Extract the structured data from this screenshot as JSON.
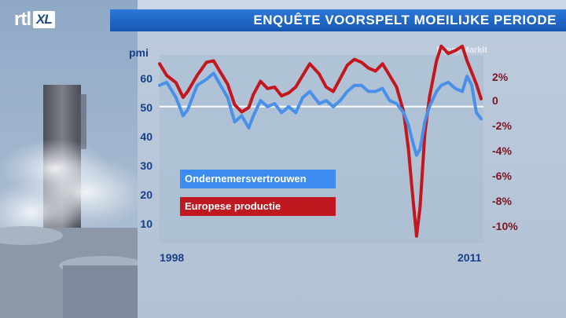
{
  "logo": {
    "rtl": "rtl",
    "xl": "XL"
  },
  "title": "ENQUÊTE VOORSPELT MOEILIJKE PERIODE",
  "source": "Bron: Markit",
  "chart_data": {
    "type": "line",
    "y_axis_label": "pmi",
    "y_left_ticks": [
      "60",
      "50",
      "40",
      "30",
      "20",
      "10"
    ],
    "y_left_range": [
      5,
      67
    ],
    "y_right_ticks": [
      "2%",
      "0",
      "-2%",
      "-4%",
      "-6%",
      "-8%",
      "-10%"
    ],
    "y_right_range": [
      -10.5,
      2.4
    ],
    "reference_line_pmi": 50,
    "x_labels": [
      "1998",
      "2011"
    ],
    "x_range": [
      1998,
      2011.8
    ],
    "grid": false,
    "series": [
      {
        "name": "Ondernemersvertrouwen",
        "axis": "left",
        "color": "#4a90e8",
        "x": [
          1998.0,
          1998.3,
          1998.7,
          1999.0,
          1999.2,
          1999.6,
          2000.0,
          2000.3,
          2000.6,
          2000.9,
          2001.2,
          2001.5,
          2001.8,
          2002.0,
          2002.3,
          2002.6,
          2002.9,
          2003.2,
          2003.5,
          2003.8,
          2004.1,
          2004.4,
          2004.8,
          2005.1,
          2005.4,
          2005.7,
          2006.0,
          2006.3,
          2006.6,
          2006.9,
          2007.2,
          2007.5,
          2007.8,
          2008.1,
          2008.4,
          2008.6,
          2008.8,
          2008.95,
          2009.1,
          2009.3,
          2009.5,
          2009.8,
          2010.0,
          2010.3,
          2010.6,
          2010.9,
          2011.1,
          2011.3,
          2011.5,
          2011.7
        ],
        "y": [
          57,
          58,
          53,
          47,
          49,
          57,
          59,
          61,
          57,
          53,
          45,
          47,
          43,
          47,
          52,
          50,
          51,
          48,
          50,
          48,
          53,
          55,
          51,
          52,
          50,
          52,
          55,
          57,
          57,
          55,
          55,
          56,
          52,
          51,
          48,
          44,
          38,
          34,
          36,
          45,
          50,
          55,
          57,
          58,
          56,
          55,
          60,
          57,
          48,
          46
        ]
      },
      {
        "name": "Europese productie",
        "axis": "right",
        "color": "#c3161d",
        "x": [
          1998.0,
          1998.3,
          1998.7,
          1999.0,
          1999.2,
          1999.6,
          2000.0,
          2000.3,
          2000.6,
          2000.9,
          2001.2,
          2001.5,
          2001.8,
          2002.0,
          2002.3,
          2002.6,
          2002.9,
          2003.2,
          2003.5,
          2003.8,
          2004.1,
          2004.4,
          2004.8,
          2005.1,
          2005.4,
          2005.7,
          2006.0,
          2006.3,
          2006.6,
          2006.9,
          2007.2,
          2007.5,
          2007.8,
          2008.1,
          2008.4,
          2008.6,
          2008.8,
          2008.95,
          2009.1,
          2009.3,
          2009.5,
          2009.8,
          2010.0,
          2010.3,
          2010.6,
          2010.9,
          2011.1,
          2011.3,
          2011.5,
          2011.7
        ],
        "y": [
          1.8,
          1.0,
          0.5,
          -0.5,
          -0.1,
          1.0,
          1.9,
          2.0,
          1.2,
          0.4,
          -1.0,
          -1.5,
          -1.2,
          -0.3,
          0.6,
          0.1,
          0.2,
          -0.4,
          -0.2,
          0.2,
          1.0,
          1.8,
          1.1,
          0.2,
          -0.1,
          0.8,
          1.7,
          2.1,
          1.9,
          1.5,
          1.3,
          1.8,
          1.0,
          0.2,
          -1.5,
          -4.0,
          -7.5,
          -10.0,
          -8.0,
          -3.0,
          -0.5,
          2.0,
          3.0,
          2.5,
          2.7,
          3.0,
          2.0,
          1.2,
          0.4,
          -0.6
        ]
      }
    ]
  }
}
